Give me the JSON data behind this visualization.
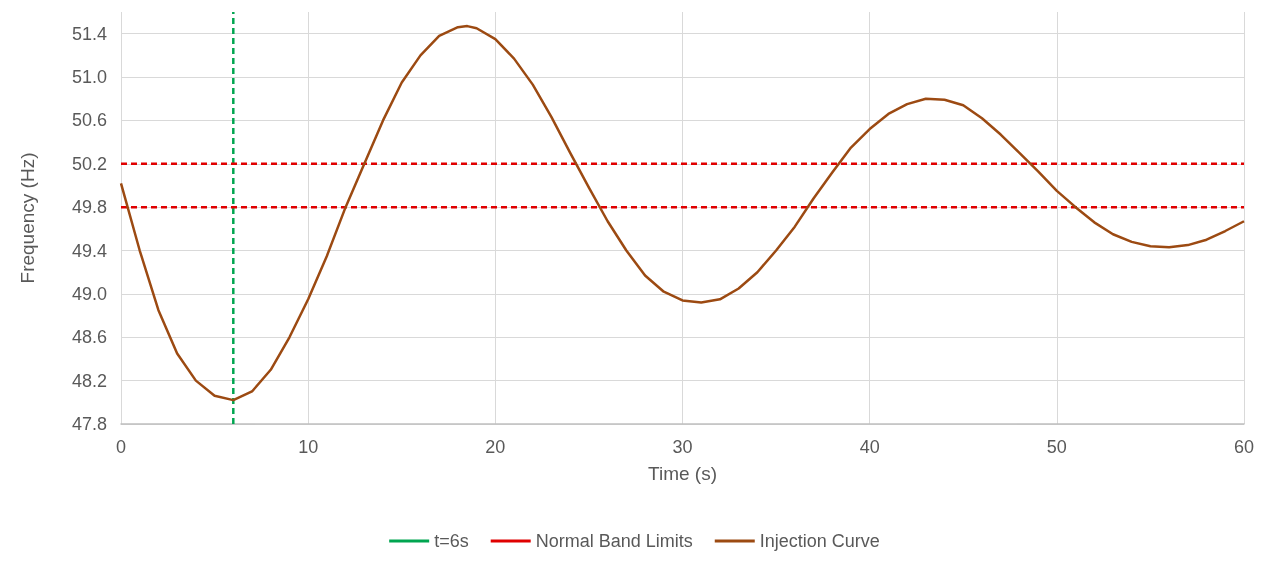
{
  "chart_data": {
    "type": "line",
    "xlabel": "Time (s)",
    "ylabel": "Frequency (Hz)",
    "xlim": [
      0,
      60
    ],
    "xticks": [
      0,
      10,
      20,
      30,
      40,
      50,
      60
    ],
    "ylim": [
      47.8,
      51.6
    ],
    "yticks": [
      47.8,
      48.2,
      48.6,
      {
        "value": 49,
        "label": "49.0"
      },
      49.4,
      49.8,
      50.2,
      50.6,
      {
        "value": 51,
        "label": "51.0"
      },
      51.4
    ],
    "grid": true,
    "legend": "bottom",
    "marker": "none",
    "series": [
      {
        "name": "t=6s",
        "color": "#00a550",
        "line_style": "dashed",
        "x": [
          6,
          6
        ],
        "values": [
          47.8,
          51.6
        ]
      },
      {
        "name": "Normal Band Limits",
        "color": "#e00000",
        "line_style": "dashed",
        "x": [
          0,
          60
        ],
        "values": [
          50.2,
          50.2
        ]
      },
      {
        "color": "#e00000",
        "line_style": "dashed",
        "x": [
          0,
          60
        ],
        "values": [
          49.8,
          49.8
        ]
      },
      {
        "name": "Injection Curve",
        "color": "#9c4a12",
        "line_style": "solid",
        "x": [
          0,
          1,
          2,
          3,
          4,
          5,
          6,
          7,
          8,
          9,
          10,
          11,
          12,
          13,
          14,
          15,
          16,
          17,
          18,
          18.5,
          19,
          20,
          21,
          22,
          23,
          24,
          25,
          26,
          27,
          28,
          29,
          30,
          31,
          32,
          33,
          34,
          35,
          36,
          37,
          38,
          39,
          40,
          41,
          42,
          43,
          44,
          45,
          46,
          47,
          48,
          49,
          50,
          51,
          52,
          53,
          54,
          55,
          56,
          57,
          58,
          59,
          60
        ],
        "values": [
          50.02,
          49.4,
          48.85,
          48.45,
          48.2,
          48.06,
          48.02,
          48.1,
          48.3,
          48.6,
          48.95,
          49.35,
          49.8,
          50.2,
          50.6,
          50.95,
          51.2,
          51.38,
          51.46,
          51.47,
          51.45,
          51.35,
          51.17,
          50.93,
          50.63,
          50.3,
          49.98,
          49.67,
          49.4,
          49.17,
          49.02,
          48.94,
          48.92,
          48.95,
          49.05,
          49.2,
          49.4,
          49.62,
          49.88,
          50.12,
          50.35,
          50.52,
          50.66,
          50.75,
          50.8,
          50.79,
          50.74,
          50.62,
          50.47,
          50.3,
          50.13,
          49.95,
          49.8,
          49.66,
          49.55,
          49.48,
          49.44,
          49.43,
          49.45,
          49.5,
          49.58,
          49.67
        ]
      }
    ]
  }
}
